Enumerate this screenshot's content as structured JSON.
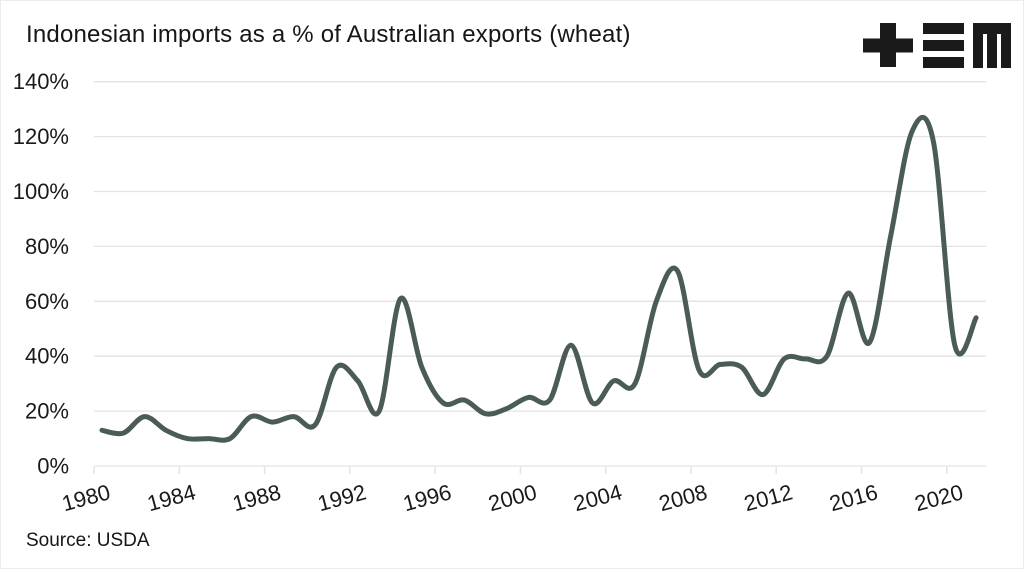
{
  "header": {
    "title": "Indonesian imports as a % of Australian exports (wheat)",
    "logo_name": "tem-logo"
  },
  "footer": {
    "source": "Source: USDA"
  },
  "colors": {
    "line": "#4a5b58",
    "grid": "#e3e3e3",
    "text": "#1a1a1a",
    "background": "#ffffff",
    "logo": "#1a1a1a"
  },
  "chart_data": {
    "type": "line",
    "title": "Indonesian imports as a % of Australian exports (wheat)",
    "xlabel": "",
    "ylabel": "",
    "source": "Source: USDA",
    "grid": true,
    "legend": false,
    "ylim": [
      0,
      140
    ],
    "x": [
      1980,
      1981,
      1982,
      1983,
      1984,
      1985,
      1986,
      1987,
      1988,
      1989,
      1990,
      1991,
      1992,
      1993,
      1994,
      1995,
      1996,
      1997,
      1998,
      1999,
      2000,
      2001,
      2002,
      2003,
      2004,
      2005,
      2006,
      2007,
      2008,
      2009,
      2010,
      2011,
      2012,
      2013,
      2014,
      2015,
      2016,
      2017,
      2018,
      2019,
      2020,
      2021
    ],
    "values": [
      13,
      12,
      18,
      13,
      10,
      10,
      10,
      18,
      16,
      18,
      15,
      36,
      31,
      20,
      61,
      36,
      23,
      24,
      19,
      21,
      25,
      24,
      44,
      23,
      31,
      30,
      60,
      71,
      35,
      37,
      36,
      26,
      39,
      39,
      40,
      63,
      45,
      84,
      122,
      118,
      44,
      54
    ],
    "y_ticks": [
      0,
      20,
      40,
      60,
      80,
      100,
      120,
      140
    ],
    "y_tick_labels": [
      "0%",
      "20%",
      "40%",
      "60%",
      "80%",
      "100%",
      "120%",
      "140%"
    ],
    "x_tick_years": [
      1980,
      1984,
      1988,
      1992,
      1996,
      2000,
      2004,
      2008,
      2012,
      2016,
      2020
    ],
    "x_tick_labels": [
      "1980",
      "1984",
      "1988",
      "1992",
      "1996",
      "2000",
      "2004",
      "2008",
      "2012",
      "2016",
      "2020"
    ]
  }
}
